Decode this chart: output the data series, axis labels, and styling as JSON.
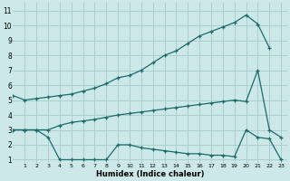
{
  "xlabel": "Humidex (Indice chaleur)",
  "background_color": "#cce8e8",
  "grid_color": "#aacece",
  "line_color": "#1a6b6b",
  "xlim": [
    0.0,
    23.5
  ],
  "ylim": [
    0.8,
    11.5
  ],
  "xticks": [
    1,
    2,
    3,
    4,
    5,
    6,
    7,
    8,
    9,
    10,
    11,
    12,
    13,
    14,
    15,
    16,
    17,
    18,
    19,
    20,
    21,
    22,
    23
  ],
  "yticks": [
    1,
    2,
    3,
    4,
    5,
    6,
    7,
    8,
    9,
    10,
    11
  ],
  "line1_x": [
    0,
    1,
    2,
    3,
    4,
    5,
    6,
    7,
    8,
    9,
    10,
    11,
    12,
    13,
    14,
    15,
    16,
    17,
    18,
    19,
    20,
    21,
    22
  ],
  "line1_y": [
    5.3,
    5.0,
    5.1,
    5.2,
    5.3,
    5.4,
    5.6,
    5.8,
    6.1,
    6.5,
    6.65,
    7.0,
    7.5,
    8.0,
    8.3,
    8.8,
    9.3,
    9.6,
    9.9,
    10.2,
    10.7,
    10.1,
    8.5
  ],
  "line2_x": [
    0,
    1,
    2,
    3,
    4,
    5,
    6,
    7,
    8,
    9,
    10,
    11,
    12,
    13,
    14,
    15,
    16,
    17,
    18,
    19,
    20,
    21,
    22,
    23
  ],
  "line2_y": [
    3.0,
    3.0,
    3.0,
    3.0,
    3.3,
    3.5,
    3.6,
    3.7,
    3.85,
    4.0,
    4.1,
    4.2,
    4.3,
    4.4,
    4.5,
    4.6,
    4.7,
    4.8,
    4.9,
    5.0,
    4.9,
    7.0,
    3.0,
    2.5
  ],
  "line3_x": [
    0,
    1,
    2,
    3,
    4,
    5,
    6,
    7,
    8,
    9,
    10,
    11,
    12,
    13,
    14,
    15,
    16,
    17,
    18,
    19,
    20,
    21,
    22,
    23
  ],
  "line3_y": [
    3.0,
    3.0,
    3.0,
    2.5,
    1.0,
    1.0,
    1.0,
    1.0,
    1.0,
    2.0,
    2.0,
    1.8,
    1.7,
    1.6,
    1.5,
    1.4,
    1.4,
    1.3,
    1.3,
    1.2,
    3.0,
    2.5,
    2.4,
    1.0
  ]
}
